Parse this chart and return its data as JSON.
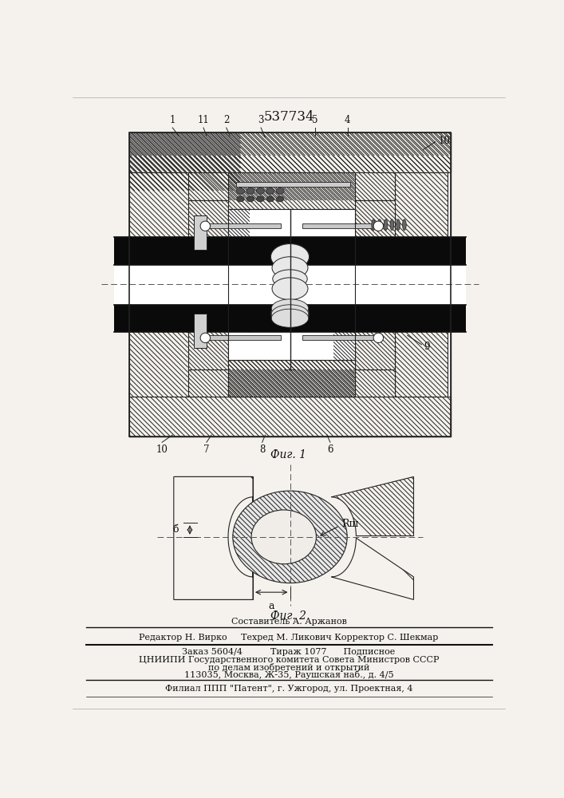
{
  "patent_number": "537734",
  "fig1_caption": "Фиг. 1",
  "fig2_caption": "Фиг. 2",
  "credit_line1": "Составитель А. Аржанов",
  "credit_line2": "Редактор Н. Вирко     Техред М. Ликович Корректор С. Шекмар",
  "info_line1": "Заказ 5604/4          Тираж 1077      Подписное",
  "info_line2": "ЦНИИПИ Государственного комитета Совета Министров СССР",
  "info_line3": "по делам изобретений и открытий",
  "info_line4": "113035, Москва, Ж-35, Раушская наб., д. 4/5",
  "info_line5": "Филиал ППП \"Патент\", г. Ужгород, ул. Проектная, 4",
  "bg_color": "#f5f2ed",
  "hatch_color": "#222222",
  "black": "#111111",
  "white": "#ffffff",
  "gray_light": "#e8e8e8"
}
